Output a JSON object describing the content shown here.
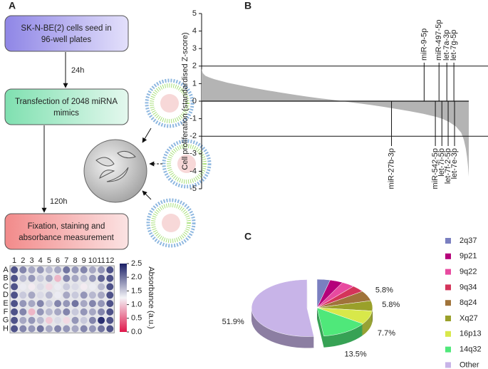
{
  "panel_labels": [
    "A",
    "B",
    "C"
  ],
  "diagram": {
    "steps": [
      [
        "SK-N-BE(2) cells seed in",
        "96-well plates"
      ],
      [
        "Transfection of 2048 miRNA",
        "mimics"
      ],
      [
        "Fixation, staining and",
        "absorbance measurement"
      ]
    ],
    "edges": [
      "24h",
      "120h"
    ]
  },
  "chart_data": [
    {
      "type": "heatmap",
      "rows": [
        "A",
        "B",
        "C",
        "D",
        "E",
        "F",
        "G",
        "H"
      ],
      "columns": [
        1,
        2,
        3,
        4,
        5,
        6,
        7,
        8,
        9,
        10,
        11,
        12
      ],
      "values": [
        [
          2.2,
          1.9,
          1.7,
          1.8,
          1.6,
          1.7,
          2.0,
          1.8,
          1.9,
          1.7,
          1.8,
          2.2
        ],
        [
          2.2,
          1.6,
          1.8,
          1.5,
          1.7,
          0.9,
          1.9,
          1.7,
          1.6,
          1.8,
          2.1,
          2.2
        ],
        [
          2.2,
          1.3,
          1.2,
          1.4,
          1.1,
          1.3,
          1.5,
          1.4,
          1.2,
          1.3,
          1.6,
          2.2
        ],
        [
          2.2,
          1.5,
          1.7,
          1.4,
          1.6,
          1.3,
          1.7,
          1.5,
          1.8,
          1.6,
          1.7,
          2.2
        ],
        [
          2.2,
          1.8,
          1.7,
          1.9,
          1.5,
          1.9,
          1.8,
          2.0,
          1.7,
          1.9,
          1.8,
          2.2
        ],
        [
          2.2,
          1.9,
          0.9,
          1.8,
          1.6,
          1.7,
          1.9,
          1.5,
          1.8,
          1.7,
          1.9,
          2.2
        ],
        [
          2.2,
          1.7,
          1.8,
          1.6,
          1.0,
          1.4,
          1.1,
          1.8,
          1.5,
          1.9,
          2.4,
          2.2
        ],
        [
          2.2,
          1.9,
          1.8,
          2.0,
          1.7,
          1.9,
          1.8,
          1.7,
          1.9,
          1.8,
          2.0,
          2.2
        ]
      ],
      "colorscale": [
        "#e0174a",
        "#f4f4f8",
        "#1a1f66"
      ],
      "zlim": [
        0,
        2.5
      ],
      "zticks": [
        {
          "value": 0,
          "label": "0.0"
        },
        0.5,
        {
          "value": 1,
          "label": "1.0"
        },
        1.5,
        {
          "value": 2,
          "label": "2.0"
        },
        2.5
      ],
      "colorbar_label": "Absorbance (a.u.)"
    },
    {
      "type": "area",
      "ylabel": "Cell proliferation (standardised  Z-score)",
      "color": "#b4b4b4",
      "x": [
        1,
        10,
        30,
        60,
        100,
        200,
        300,
        400,
        500,
        600,
        700,
        800,
        900,
        1000,
        1100,
        1200,
        1300,
        1400,
        1500,
        1600,
        1700,
        1800,
        1850,
        1900,
        1950,
        1990,
        2010,
        2025,
        2035,
        2042,
        2048
      ],
      "values": [
        1.85,
        1.6,
        1.45,
        1.35,
        1.25,
        1.05,
        0.9,
        0.75,
        0.62,
        0.5,
        0.38,
        0.27,
        0.17,
        0.08,
        -0.02,
        -0.12,
        -0.22,
        -0.33,
        -0.45,
        -0.58,
        -0.72,
        -0.9,
        -1.02,
        -1.2,
        -1.45,
        -1.8,
        -2.2,
        -2.7,
        -3.2,
        -3.7,
        -4.3
      ],
      "xlim": [
        1,
        2048
      ],
      "ylim": [
        -5,
        5
      ],
      "yticks": [
        -5,
        -4,
        -3,
        -2,
        -1,
        0,
        1,
        2,
        3,
        4,
        5
      ],
      "hlines": [
        2,
        -2
      ],
      "annotations": [
        {
          "label": "miR-9-5p",
          "x": 1706,
          "side": "top"
        },
        {
          "label": "miR-497-5p",
          "x": 1820,
          "side": "top"
        },
        {
          "label": "let-7a-3p",
          "x": 1880,
          "side": "top"
        },
        {
          "label": "let-7g-5p",
          "x": 1934,
          "side": "top"
        },
        {
          "label": "miR-27b-3p",
          "x": 1456,
          "side": "bottom"
        },
        {
          "label": "miR-542-5p",
          "x": 1792,
          "side": "bottom"
        },
        {
          "label": "let-7i-5p",
          "x": 1842,
          "side": "bottom"
        },
        {
          "label": "let-7f-2-5p",
          "x": 1890,
          "side": "bottom"
        },
        {
          "label": "let-7e-3p",
          "x": 1939,
          "side": "bottom"
        }
      ]
    },
    {
      "type": "pie",
      "categories": [
        "2q37",
        "9p21",
        "9q22",
        "9q34",
        "8q24",
        "Xq27",
        "16p13",
        "14q32",
        "Other"
      ],
      "values": [
        3.8,
        3.8,
        3.8,
        3.8,
        5.8,
        5.8,
        7.7,
        13.5,
        51.9
      ],
      "value_labels": [
        null,
        null,
        null,
        null,
        "5.8%",
        "5.8%",
        "7.7%",
        "13.5%",
        "51.9%"
      ],
      "colors": [
        "#7a7fc0",
        "#b5007a",
        "#e84aa0",
        "#d4345a",
        "#a0733a",
        "#9aa02a",
        "#d8e84a",
        "#4fe87a",
        "#c8b4e8"
      ],
      "exploded": "Other"
    }
  ]
}
